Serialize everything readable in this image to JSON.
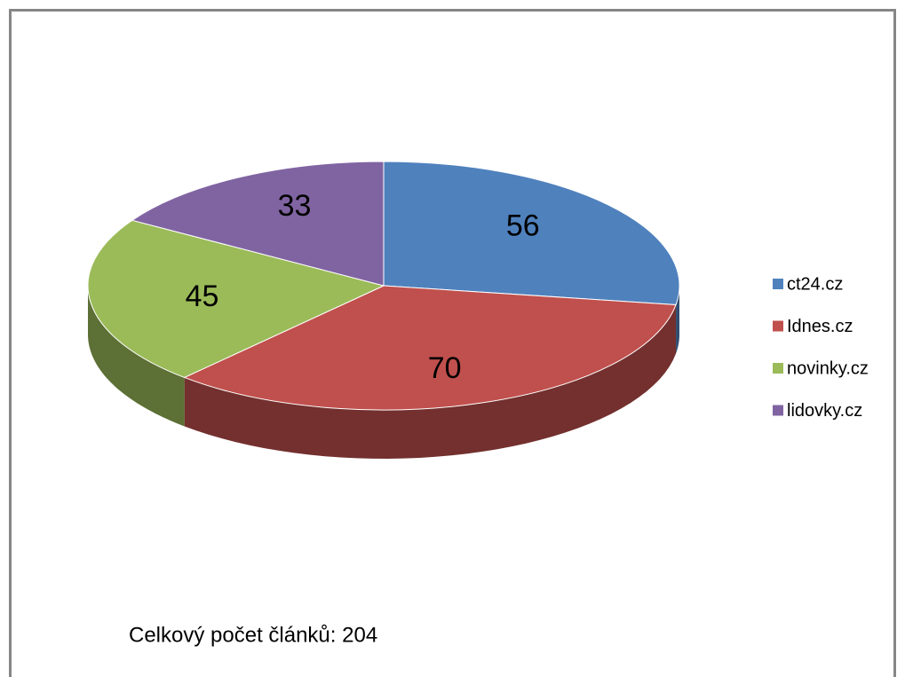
{
  "chart_data": {
    "type": "pie",
    "categories": [
      "ct24.cz",
      "Idnes.cz",
      "novinky.cz",
      "lidovky.cz"
    ],
    "values": [
      56,
      70,
      45,
      33
    ],
    "colors": [
      "#4f81bd",
      "#c0504d",
      "#9bbb59",
      "#8064a2"
    ],
    "legend": "right",
    "annotation": "Celkový počet článků: 204"
  }
}
